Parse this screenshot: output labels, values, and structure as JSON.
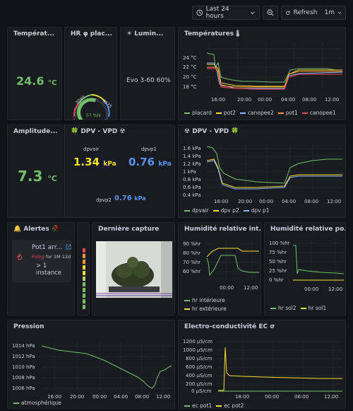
{
  "toolbar": {
    "time_range": "Last 24 hours",
    "refresh": "Refresh",
    "interval": "1m"
  },
  "panels": {
    "temp": {
      "title": "Températ...",
      "value": "24.6",
      "unit": "°C"
    },
    "hr": {
      "title": "HR φ plac...",
      "value": "57 %hr",
      "gauge": {
        "min": "0",
        "t1": "3040",
        "t2": "6575",
        "max": "100",
        "fraction": 0.57
      }
    },
    "lum": {
      "title": "☀ Lumin...",
      "value": "Evo 3-60 60%"
    },
    "temps": {
      "title": "Températures🌡",
      "yticks": [
        "24 °C",
        "22 °C",
        "20 °C",
        "18 °C"
      ],
      "xticks": [
        "16:00",
        "20:00",
        "00:00",
        "04:00",
        "08:00",
        "12:00"
      ],
      "legend": [
        {
          "name": "placard",
          "color": "#73bf69"
        },
        {
          "name": "pot2",
          "color": "#fade2a"
        },
        {
          "name": "canopee2",
          "color": "#8ab8ff"
        },
        {
          "name": "pot1",
          "color": "#ff9830"
        },
        {
          "name": "canopee1",
          "color": "#f2495c"
        }
      ]
    },
    "amp": {
      "title": "Amplitude...",
      "value": "7.3",
      "unit": "°C"
    },
    "dpv": {
      "title": "🍀 DPV - VPD ☢",
      "dpvair_label": "dpvair",
      "dpvair_value": "1.34",
      "dpvair_unit": "kPa",
      "dpvp1_label": "dpvp1",
      "dpvp1_value": "0.76",
      "dpvp1_unit": "kPa",
      "dpvp2_label": "dpvp2",
      "dpvp2_value": "0.76",
      "dpvp2_unit": "kPa"
    },
    "dpvchart": {
      "title": "☢ DPV - VPD 🍀",
      "yticks": [
        "1.6 kPa",
        "1.4 kPa",
        "1.2 kPa",
        "1 kPa",
        "0.8 kPa",
        "0.6 kPa",
        "0.4 kPa"
      ],
      "xticks": [
        "16:00",
        "20:00",
        "00:00",
        "04:00",
        "08:00",
        "12:00"
      ],
      "legend": [
        {
          "name": "dpvair",
          "color": "#73bf69"
        },
        {
          "name": "dpv p2",
          "color": "#fade2a"
        },
        {
          "name": "dpv p1",
          "color": "#8ab8ff"
        }
      ]
    },
    "alerts": {
      "title": "🔔 Alertes 🥀",
      "item_name": "Pot1 arr...",
      "state": "Firing",
      "duration": "for 1M 12d",
      "instances": "> 1 instance"
    },
    "capture": {
      "title": "Dernière capture"
    },
    "hrint": {
      "title": "Humidité relative int...",
      "yticks": [
        "90 %hr",
        "80 %hr",
        "70 %hr",
        "60 %hr"
      ],
      "xticks": [
        "00:00",
        "12:00"
      ],
      "legend": [
        {
          "name": "hr intérieure",
          "color": "#73bf69"
        },
        {
          "name": "hr extérieure",
          "color": "#fade2a"
        }
      ]
    },
    "hrpot": {
      "title": "Humidité relative po...",
      "yticks": [
        "100 %hr",
        "75 %hr",
        "50 %hr",
        "25 %hr",
        "0 %hr"
      ],
      "xticks": [
        "00:00",
        "12:00"
      ],
      "legend": [
        {
          "name": "hr sol2",
          "color": "#73bf69"
        },
        {
          "name": "hr sol1",
          "color": "#fade2a"
        }
      ]
    },
    "pression": {
      "title": "Pression",
      "yticks": [
        "1014 hPa",
        "1012 hPa",
        "1010 hPa",
        "1008 hPa",
        "1006 hPa"
      ],
      "xticks": [
        "16:00",
        "20:00",
        "00:00",
        "04:00",
        "08:00",
        "12:00"
      ],
      "legend": [
        {
          "name": "atmosphérique",
          "color": "#73bf69"
        }
      ]
    },
    "ec": {
      "title": "Electro-conductivité EC σ",
      "yticks": [
        "1200 µS/cm",
        "1000 µS/cm",
        "800 µS/cm",
        "600 µS/cm",
        "400 µS/cm",
        "200 µS/cm",
        "0 µS/cm"
      ],
      "xticks": [
        "18:00",
        "00:00",
        "06:00",
        "12:00"
      ],
      "legend": [
        {
          "name": "ec pot1",
          "color": "#73bf69"
        },
        {
          "name": "ec pot2",
          "color": "#fade2a"
        }
      ]
    }
  }
}
